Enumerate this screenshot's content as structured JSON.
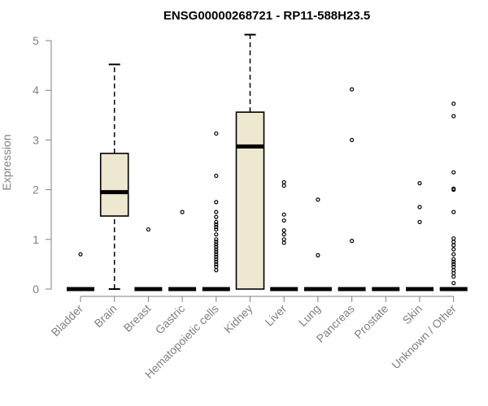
{
  "chart_data": {
    "type": "boxplot",
    "title": "ENSG00000268721 - RP11-588H23.5",
    "xlabel": "",
    "ylabel": "Expression",
    "ylim": [
      0,
      5
    ],
    "yticks": [
      0,
      1,
      2,
      3,
      4,
      5
    ],
    "box_fill": "#EEE8D0",
    "categories": [
      "Bladder",
      "Brain",
      "Breast",
      "Gastric",
      "Hematopoietic cells",
      "Kidney",
      "Liver",
      "Lung",
      "Pancreas",
      "Prostate",
      "Skin",
      "Unknown / Other"
    ],
    "boxes": [
      {
        "category": "Bladder",
        "min": 0,
        "q1": 0,
        "median": 0,
        "q3": 0,
        "max": 0,
        "outliers": [
          0.7
        ]
      },
      {
        "category": "Brain",
        "min": 0,
        "q1": 1.47,
        "median": 1.95,
        "q3": 2.73,
        "max": 4.52,
        "outliers": []
      },
      {
        "category": "Breast",
        "min": 0,
        "q1": 0,
        "median": 0,
        "q3": 0,
        "max": 0,
        "outliers": [
          1.2
        ]
      },
      {
        "category": "Gastric",
        "min": 0,
        "q1": 0,
        "median": 0,
        "q3": 0,
        "max": 0,
        "outliers": [
          1.55
        ]
      },
      {
        "category": "Hematopoietic cells",
        "min": 0,
        "q1": 0,
        "median": 0,
        "q3": 0,
        "max": 0,
        "outliers": [
          0.38,
          0.45,
          0.5,
          0.55,
          0.6,
          0.65,
          0.7,
          0.75,
          0.8,
          0.85,
          0.9,
          0.95,
          1.0,
          1.1,
          1.2,
          1.25,
          1.3,
          1.35,
          1.45,
          1.55,
          1.75,
          2.28,
          3.13
        ]
      },
      {
        "category": "Kidney",
        "min": 0,
        "q1": 0,
        "median": 2.87,
        "q3": 3.56,
        "max": 5.12,
        "outliers": []
      },
      {
        "category": "Liver",
        "min": 0,
        "q1": 0,
        "median": 0,
        "q3": 0,
        "max": 0,
        "outliers": [
          0.93,
          1.0,
          1.1,
          1.18,
          1.38,
          1.5,
          2.08,
          2.15
        ]
      },
      {
        "category": "Lung",
        "min": 0,
        "q1": 0,
        "median": 0,
        "q3": 0,
        "max": 0,
        "outliers": [
          0.68,
          1.8
        ]
      },
      {
        "category": "Pancreas",
        "min": 0,
        "q1": 0,
        "median": 0,
        "q3": 0,
        "max": 0,
        "outliers": [
          0.97,
          3.0,
          4.02
        ]
      },
      {
        "category": "Prostate",
        "min": 0,
        "q1": 0,
        "median": 0,
        "q3": 0,
        "max": 0,
        "outliers": []
      },
      {
        "category": "Skin",
        "min": 0,
        "q1": 0,
        "median": 0,
        "q3": 0,
        "max": 0,
        "outliers": [
          1.35,
          1.65,
          2.13
        ]
      },
      {
        "category": "Unknown / Other",
        "min": 0,
        "q1": 0,
        "median": 0,
        "q3": 0,
        "max": 0,
        "outliers": [
          0.12,
          0.25,
          0.32,
          0.38,
          0.45,
          0.5,
          0.55,
          0.6,
          0.7,
          0.8,
          0.88,
          0.95,
          1.02,
          1.55,
          2.0,
          2.02,
          2.35,
          3.48,
          3.73
        ]
      }
    ]
  }
}
